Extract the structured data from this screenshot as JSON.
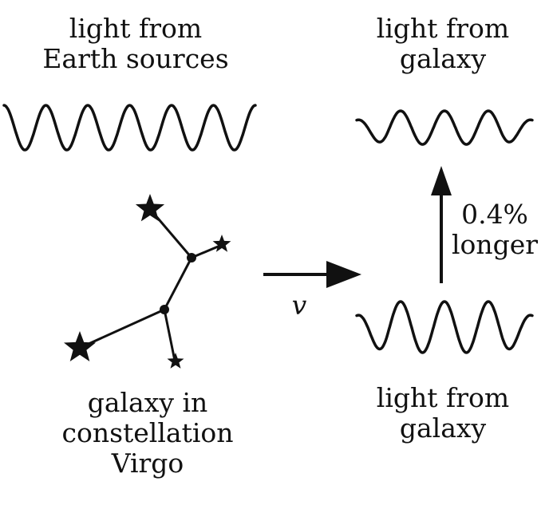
{
  "labels": {
    "earth_light": [
      "light from",
      "Earth sources"
    ],
    "galaxy_light_top": [
      "light from",
      "galaxy"
    ],
    "galaxy_light_bottom": [
      "light from",
      "galaxy"
    ],
    "galaxy": [
      "galaxy in",
      "constellation",
      "Virgo"
    ],
    "stretch": [
      "0.4%",
      "longer"
    ],
    "velocity": "v"
  },
  "colors": {
    "ink": "#111111"
  },
  "waves": {
    "earth": {
      "cycles": 6,
      "description": "short-wavelength wave"
    },
    "galaxy_top": {
      "cycles": 4,
      "description": "stretched wave"
    },
    "galaxy_bottom": {
      "cycles": 4,
      "description": "wave emitted by galaxy"
    }
  },
  "icons": {
    "star": "five-point-star-icon",
    "arrow": "arrow-icon"
  }
}
